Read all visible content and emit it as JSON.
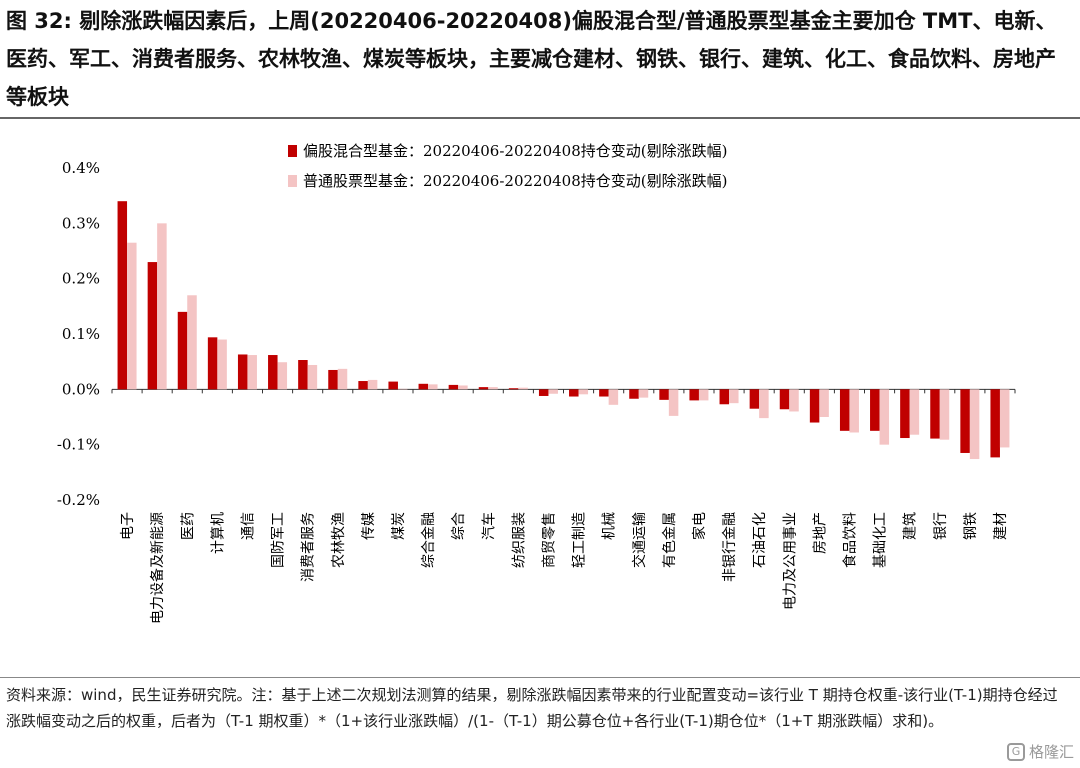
{
  "header": {
    "title": "图 32: 剔除涨跌幅因素后，上周(20220406-20220408)偏股混合型/普通股票型基金主要加仓 TMT、电新、医药、军工、消费者服务、农林牧渔、煤炭等板块，主要减仓建材、钢铁、银行、建筑、化工、食品饮料、房地产等板块"
  },
  "footer": {
    "note": "资料来源：wind，民生证券研究院。注：基于上述二次规划法测算的结果，剔除涨跌幅因素带来的行业配置变动=该行业 T 期持仓权重-该行业(T-1)期持仓经过涨跌幅变动之后的权重，后者为（T-1 期权重）*（1+该行业涨跌幅）/(1-（T-1）期公募仓位+各行业(T-1)期仓位*（1+T 期涨跌幅）求和)。",
    "watermark": "格隆汇"
  },
  "chart_data": {
    "type": "bar",
    "ylim": [
      -0.002,
      0.004
    ],
    "yticks": [
      -0.002,
      -0.001,
      0.0,
      0.001,
      0.002,
      0.003,
      0.004
    ],
    "ytick_labels": [
      "-0.2%",
      "-0.1%",
      "0.0%",
      "0.1%",
      "0.2%",
      "0.3%",
      "0.4%"
    ],
    "legend_position": "top-center",
    "categories": [
      "电子",
      "电力设备及新能源",
      "医药",
      "计算机",
      "通信",
      "国防军工",
      "消费者服务",
      "农林牧渔",
      "传媒",
      "煤炭",
      "综合金融",
      "综合",
      "汽车",
      "纺织服装",
      "商贸零售",
      "轻工制造",
      "机械",
      "交通运输",
      "有色金属",
      "家电",
      "非银行金融",
      "石油石化",
      "电力及公用事业",
      "房地产",
      "食品饮料",
      "基础化工",
      "建筑",
      "银行",
      "钢铁",
      "建材"
    ],
    "series": [
      {
        "name": "偏股混合型基金：20220406-20220408持仓变动(剔除涨跌幅)",
        "color": "#c00000",
        "values": [
          0.0034,
          0.0023,
          0.0014,
          0.00094,
          0.00063,
          0.00062,
          0.00053,
          0.00035,
          0.00015,
          0.00014,
          0.0001,
          8e-05,
          4e-05,
          2e-05,
          -0.00012,
          -0.00013,
          -0.00013,
          -0.00017,
          -0.00019,
          -0.0002,
          -0.00027,
          -0.00035,
          -0.00036,
          -0.0006,
          -0.00075,
          -0.00075,
          -0.00088,
          -0.00089,
          -0.00115,
          -0.00123
        ]
      },
      {
        "name": "普通股票型基金：20220406-20220408持仓变动(剔除涨跌幅)",
        "color": "#f4c4c4",
        "values": [
          0.00265,
          0.003,
          0.0017,
          0.0009,
          0.00062,
          0.00049,
          0.00044,
          0.00037,
          0.00017,
          1e-05,
          9e-05,
          7e-05,
          4e-05,
          3e-05,
          -8e-05,
          -9e-05,
          -0.00028,
          -0.00015,
          -0.00048,
          -0.0002,
          -0.00025,
          -0.00052,
          -0.0004,
          -0.0005,
          -0.00078,
          -0.001,
          -0.00082,
          -0.00091,
          -0.00126,
          -0.00105
        ]
      }
    ]
  }
}
